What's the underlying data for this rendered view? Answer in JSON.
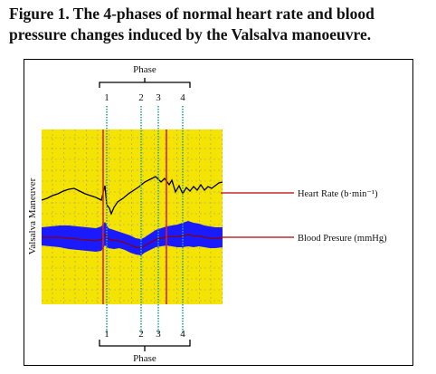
{
  "caption": {
    "line1": "Figure 1. The 4-phases of normal heart rate and blood",
    "line2": "pressure changes induced by the Valsalva manoeuvre."
  },
  "figure": {
    "phase_header_top": "Phase",
    "phase_header_bottom": "Phase",
    "phase_numbers": [
      "1",
      "2",
      "3",
      "4"
    ],
    "side_label": "Valsalva Maneuver",
    "labels": {
      "heart_rate": "Heart Rate (b·min⁻¹)",
      "blood_pressure": "Blood Presure (mmHg)"
    },
    "colors": {
      "plot_background": "#f5e400",
      "grid": "#9a9a9a",
      "phase_lines": "#2aa3a0",
      "red_markers": "#e0201a",
      "heart_rate_trace": "#000000",
      "blood_pressure_band": "#1a1aff",
      "blood_pressure_mean": "#8b0000",
      "leader_lines": "#b00000"
    }
  }
}
